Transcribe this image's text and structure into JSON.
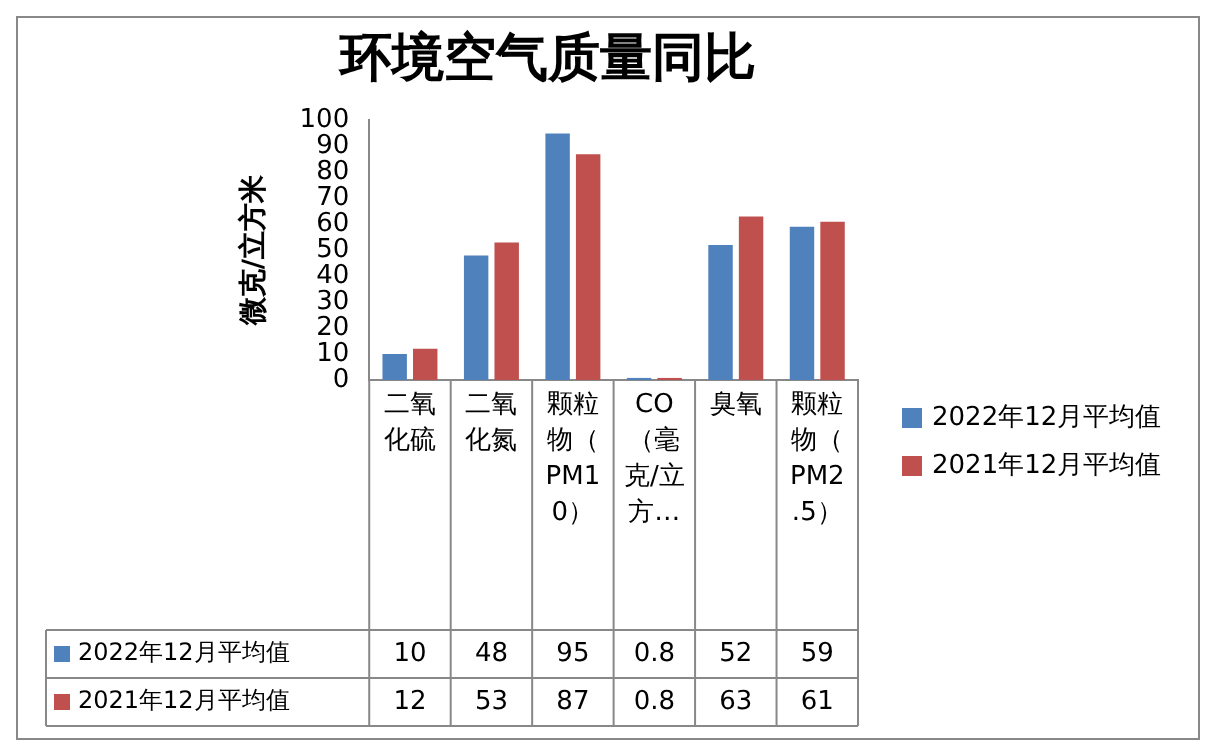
{
  "chart_data": {
    "type": "bar",
    "title": "环境空气质量同比",
    "ylabel": "微克/立方米",
    "categories": [
      "二氧化硫",
      "二氧化氮",
      "颗粒物（PM10）",
      "CO（毫克/立方…",
      "臭氧",
      "颗粒物（PM2.5）"
    ],
    "series": [
      {
        "name": "2022年12月平均值",
        "color": "#4f81bd",
        "values": [
          10,
          48,
          95,
          0.8,
          52,
          59
        ]
      },
      {
        "name": "2021年12月平均值",
        "color": "#c0504d",
        "values": [
          12,
          53,
          87,
          0.8,
          63,
          61
        ]
      }
    ],
    "ylim": [
      0,
      100
    ],
    "yticks": [
      0,
      10,
      20,
      30,
      40,
      50,
      60,
      70,
      80,
      90,
      100
    ],
    "grid": false,
    "legend": "right",
    "data_labels": true
  }
}
